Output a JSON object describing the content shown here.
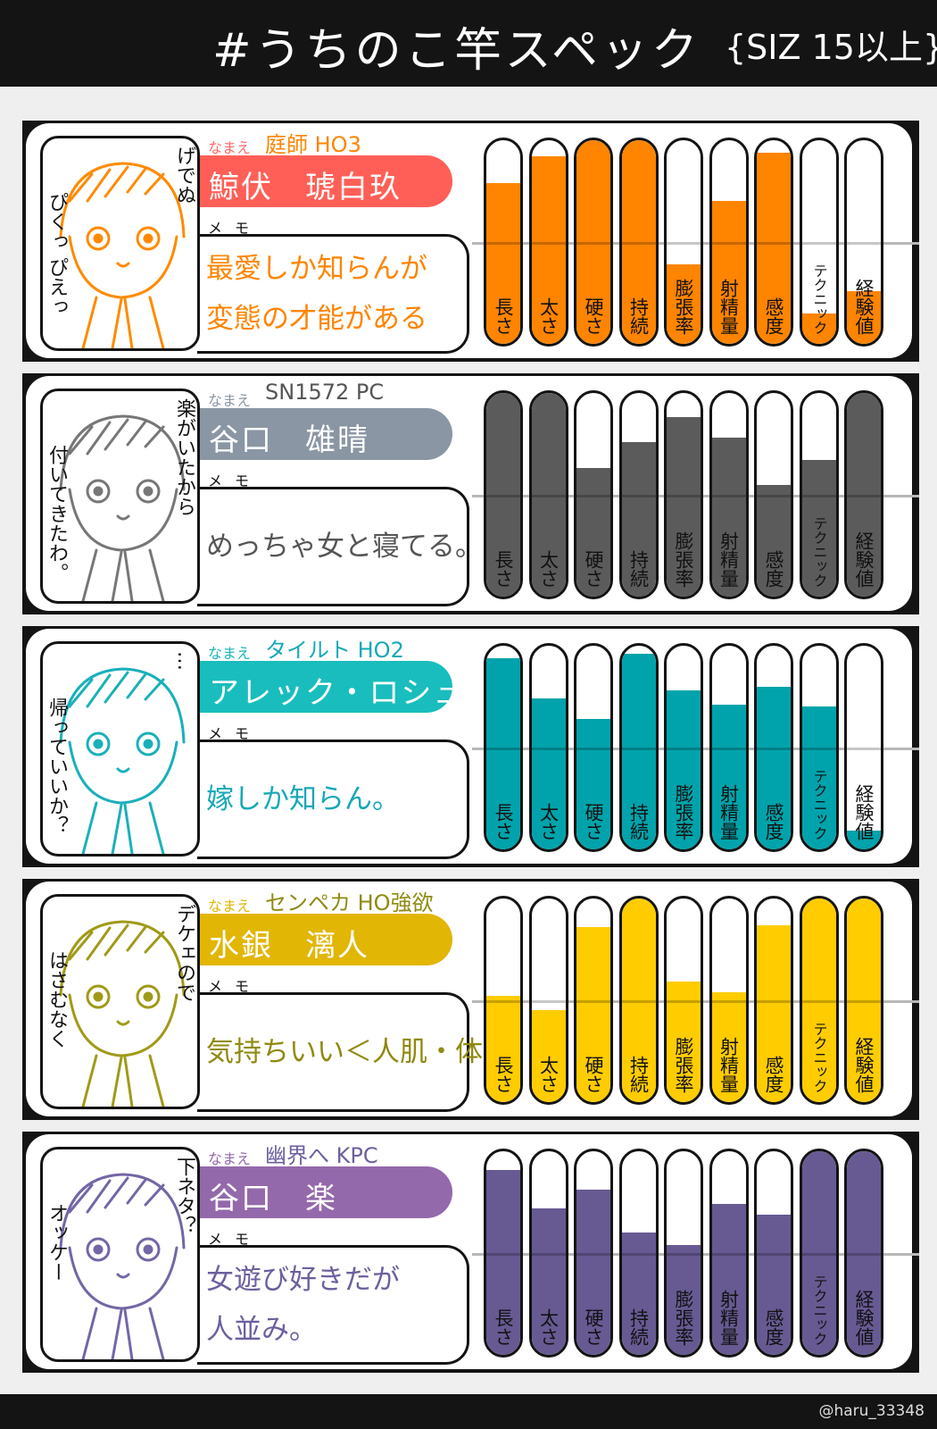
{
  "header": {
    "title": "#うちのこ竿スペック",
    "subtitle": "{SIZ 15以上}"
  },
  "labels": {
    "name_label": "なまえ",
    "memo_label": "メモ"
  },
  "stat_labels": [
    "長さ",
    "太さ",
    "硬さ",
    "持続",
    "膨張率",
    "射精量",
    "感度",
    "テクニック",
    "経験値"
  ],
  "cards": [
    {
      "tag": "庭師 HO3",
      "name": "鯨伏　琥白玖",
      "memo_lines": [
        "最愛しか知らんが",
        "変態の才能がある"
      ],
      "side_right": "げでぬ",
      "side_left": "ぴくっ ぴえっ",
      "colors": {
        "pill": "#ff5f57",
        "bar": "#ff8400",
        "label": "#ff6a6a",
        "text": "#ff8400",
        "art": "#ff8a00"
      },
      "stats": [
        0.79,
        0.92,
        1.0,
        1.0,
        0.39,
        0.7,
        0.94,
        0.15,
        0.26
      ]
    },
    {
      "tag": "SN1572 PC",
      "name": "谷口　雄晴",
      "memo_lines": [
        "めっちゃ女と寝てる。"
      ],
      "side_right": "楽がいたから",
      "side_left": "付いてきたわ。",
      "colors": {
        "pill": "#8a96a3",
        "bar": "#5b5b5b",
        "label": "#8a96a3",
        "text": "#555555",
        "art": "#777777"
      },
      "stats": [
        1.0,
        1.0,
        0.63,
        0.76,
        0.88,
        0.78,
        0.55,
        0.67,
        1.0
      ]
    },
    {
      "tag": "タイルト HO2",
      "name": "アレック・ロシュ",
      "memo_lines": [
        "嫁しか知らん。"
      ],
      "side_right": "…",
      "side_left": "帰っていいか？",
      "colors": {
        "pill": "#19bdbd",
        "bar": "#00a3ab",
        "label": "#19b5bd",
        "text": "#16a8b8",
        "art": "#1ab0bb"
      },
      "stats": [
        0.94,
        0.74,
        0.64,
        0.96,
        0.78,
        0.71,
        0.8,
        0.7,
        0.09
      ]
    },
    {
      "tag": "センペカ HO強欲",
      "name": "水銀　漓人",
      "memo_lines": [
        "気持ちいい＜人肌・体温"
      ],
      "side_right": "デケェので",
      "side_left": "はさむなく",
      "colors": {
        "pill": "#e2b605",
        "bar": "#ffcc00",
        "label": "#e2b605",
        "text": "#8f8a10",
        "art": "#a09a18"
      },
      "stats": [
        0.52,
        0.45,
        0.86,
        1.0,
        0.59,
        0.54,
        0.87,
        1.0,
        1.0
      ]
    },
    {
      "tag": "幽界へ KPC",
      "name": "谷口　楽",
      "memo_lines": [
        "女遊び好きだが",
        "人並み。"
      ],
      "side_right": "下ネタ？",
      "side_left": "オッケー",
      "colors": {
        "pill": "#9469ab",
        "bar": "#675a93",
        "label": "#9469ab",
        "text": "#6d5f9e",
        "art": "#7466a6"
      },
      "stats": [
        0.91,
        0.72,
        0.81,
        0.6,
        0.54,
        0.74,
        0.69,
        1.0,
        1.0
      ]
    }
  ],
  "footer": {
    "credit": "@haru_33348"
  }
}
